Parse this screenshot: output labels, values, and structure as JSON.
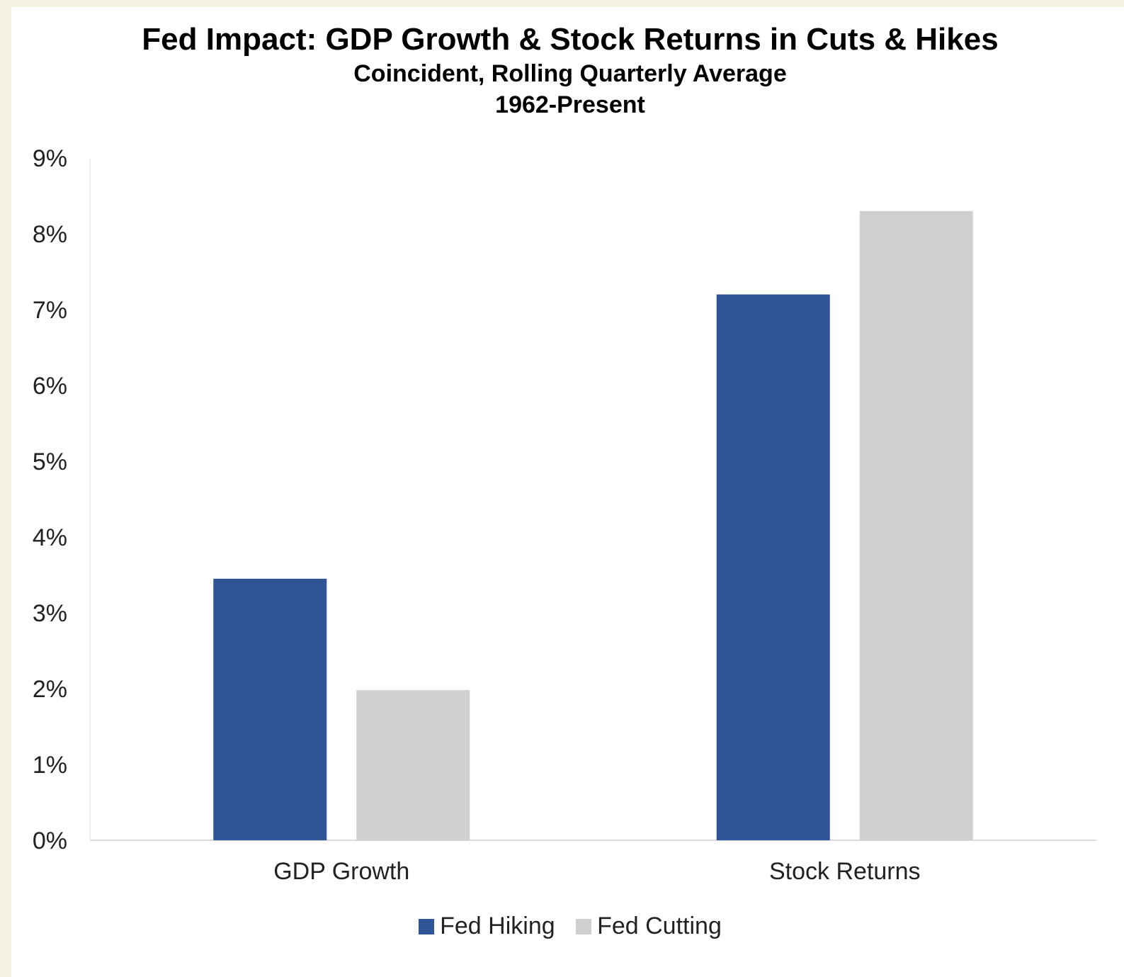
{
  "chart_data": {
    "type": "bar",
    "title": "Fed Impact: GDP Growth & Stock Returns in Cuts & Hikes",
    "subtitle": "Coincident, Rolling Quarterly Average",
    "subtitle2": "1962-Present",
    "categories": [
      "GDP Growth",
      "Stock Returns"
    ],
    "series": [
      {
        "name": "Fed Hiking",
        "values": [
          3.45,
          7.2
        ],
        "color": "#2f5597"
      },
      {
        "name": "Fed Cutting",
        "values": [
          1.98,
          8.3
        ],
        "color": "#d0cfd1"
      }
    ],
    "ylim": [
      0,
      9
    ],
    "yticks": [
      "0%",
      "1%",
      "2%",
      "3%",
      "4%",
      "5%",
      "6%",
      "7%",
      "8%",
      "9%"
    ],
    "grid": false,
    "legend": "bottom"
  }
}
